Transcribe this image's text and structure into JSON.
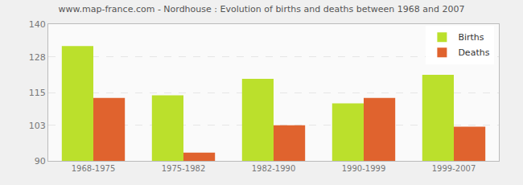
{
  "chart_data": {
    "type": "bar",
    "title": "www.map-france.com - Nordhouse : Evolution of births and deaths between 1968 and 2007",
    "categories": [
      "1968-1975",
      "1975-1982",
      "1982-1990",
      "1990-1999",
      "1999-2007"
    ],
    "series": [
      {
        "name": "Births",
        "color": "#bbe02c",
        "values": [
          132,
          114,
          120,
          111,
          121.5
        ]
      },
      {
        "name": "Deaths",
        "color": "#e0632e",
        "values": [
          113,
          93,
          103,
          113,
          102.5
        ]
      }
    ],
    "ylim": [
      90,
      140
    ],
    "yticks": [
      90,
      103,
      115,
      128,
      140
    ],
    "grid": true,
    "legend": "top-right"
  }
}
